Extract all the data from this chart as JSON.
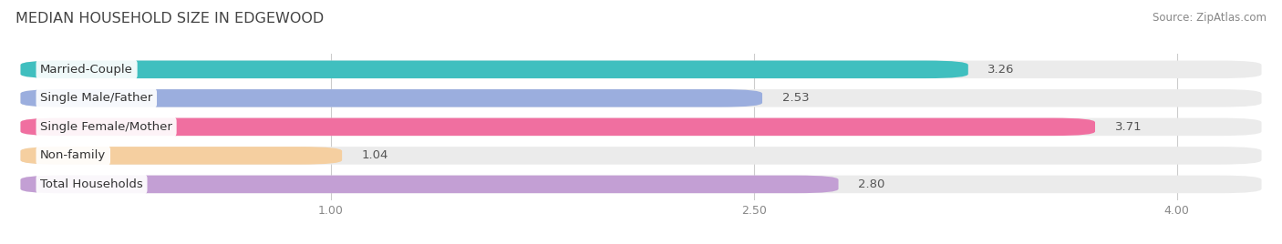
{
  "title": "MEDIAN HOUSEHOLD SIZE IN EDGEWOOD",
  "source": "Source: ZipAtlas.com",
  "categories": [
    "Married-Couple",
    "Single Male/Father",
    "Single Female/Mother",
    "Non-family",
    "Total Households"
  ],
  "values": [
    3.26,
    2.53,
    3.71,
    1.04,
    2.8
  ],
  "bar_colors": [
    "#40bfbf",
    "#9baede",
    "#f06fa0",
    "#f5cfa0",
    "#c39fd4"
  ],
  "bar_bg_color": "#ebebeb",
  "xmin": 0.0,
  "xmax": 4.0,
  "xticks": [
    1.0,
    2.5,
    4.0
  ],
  "label_fontsize": 9.5,
  "value_fontsize": 9.5,
  "title_fontsize": 11.5,
  "source_fontsize": 8.5,
  "bar_height": 0.62,
  "bar_gap": 0.38,
  "background_color": "#ffffff",
  "label_text_color": "#333333",
  "value_text_color": "#555555",
  "grid_color": "#cccccc",
  "tick_color": "#888888"
}
